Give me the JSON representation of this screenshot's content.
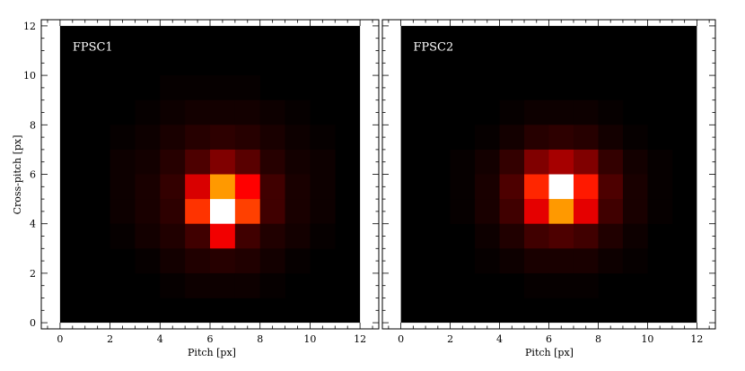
{
  "chart_data": [
    {
      "type": "heatmap",
      "title": "FPSC1",
      "xlabel": "Pitch [px]",
      "ylabel": "Cross-pitch [px]",
      "xlim": [
        -0.75,
        12.75
      ],
      "ylim": [
        -0.25,
        12.25
      ],
      "x_ticks": [
        0,
        2,
        4,
        6,
        8,
        10,
        12
      ],
      "y_ticks": [
        0,
        2,
        4,
        6,
        8,
        10,
        12
      ],
      "pixel_size": 1,
      "grid_origin": [
        0,
        0
      ],
      "grid_shape": [
        12,
        12
      ],
      "colormap": "hot",
      "values_relative_intensity": [
        [
          0.0,
          0.0,
          0.0,
          0.0,
          0.0,
          0.0,
          0.0,
          0.0,
          0.0,
          0.0,
          0.0,
          0.0
        ],
        [
          0.0,
          0.0,
          0.0,
          0.0,
          0.0,
          0.0,
          0.0,
          0.0,
          0.0,
          0.0,
          0.0,
          0.0
        ],
        [
          0.0,
          0.0,
          0.0,
          0.0,
          0.01,
          0.01,
          0.01,
          0.01,
          0.0,
          0.0,
          0.0,
          0.0
        ],
        [
          0.0,
          0.0,
          0.0,
          0.01,
          0.02,
          0.03,
          0.03,
          0.03,
          0.02,
          0.01,
          0.0,
          0.0
        ],
        [
          0.0,
          0.0,
          0.01,
          0.02,
          0.04,
          0.06,
          0.07,
          0.06,
          0.04,
          0.02,
          0.01,
          0.0
        ],
        [
          0.0,
          0.0,
          0.02,
          0.03,
          0.06,
          0.12,
          0.2,
          0.14,
          0.06,
          0.03,
          0.02,
          0.0
        ],
        [
          0.0,
          0.0,
          0.02,
          0.04,
          0.08,
          0.34,
          0.64,
          0.4,
          0.1,
          0.04,
          0.02,
          0.0
        ],
        [
          0.0,
          0.0,
          0.02,
          0.04,
          0.07,
          0.48,
          1.0,
          0.5,
          0.1,
          0.04,
          0.02,
          0.0
        ],
        [
          0.0,
          0.0,
          0.01,
          0.03,
          0.05,
          0.1,
          0.38,
          0.1,
          0.05,
          0.03,
          0.01,
          0.0
        ],
        [
          0.0,
          0.0,
          0.0,
          0.01,
          0.03,
          0.05,
          0.06,
          0.05,
          0.03,
          0.01,
          0.0,
          0.0
        ],
        [
          0.0,
          0.0,
          0.0,
          0.0,
          0.01,
          0.02,
          0.02,
          0.02,
          0.01,
          0.0,
          0.0,
          0.0
        ],
        [
          0.0,
          0.0,
          0.0,
          0.0,
          0.0,
          0.0,
          0.0,
          0.0,
          0.0,
          0.0,
          0.0,
          0.0
        ]
      ]
    },
    {
      "type": "heatmap",
      "title": "FPSC2",
      "xlabel": "Pitch [px]",
      "ylabel": "",
      "xlim": [
        -0.75,
        12.75
      ],
      "ylim": [
        -0.25,
        12.25
      ],
      "x_ticks": [
        0,
        2,
        4,
        6,
        8,
        10,
        12
      ],
      "y_ticks": [
        0,
        2,
        4,
        6,
        8,
        10,
        12
      ],
      "pixel_size": 1,
      "grid_origin": [
        0,
        0
      ],
      "grid_shape": [
        12,
        12
      ],
      "colormap": "hot",
      "values_relative_intensity": [
        [
          0.0,
          0.0,
          0.0,
          0.0,
          0.0,
          0.0,
          0.0,
          0.0,
          0.0,
          0.0,
          0.0,
          0.0
        ],
        [
          0.0,
          0.0,
          0.0,
          0.0,
          0.0,
          0.0,
          0.0,
          0.0,
          0.0,
          0.0,
          0.0,
          0.0
        ],
        [
          0.0,
          0.0,
          0.0,
          0.0,
          0.0,
          0.0,
          0.0,
          0.0,
          0.0,
          0.0,
          0.0,
          0.0
        ],
        [
          0.0,
          0.0,
          0.0,
          0.0,
          0.01,
          0.02,
          0.02,
          0.02,
          0.01,
          0.0,
          0.0,
          0.0
        ],
        [
          0.0,
          0.0,
          0.0,
          0.01,
          0.03,
          0.06,
          0.07,
          0.06,
          0.03,
          0.01,
          0.0,
          0.0
        ],
        [
          0.0,
          0.0,
          0.01,
          0.03,
          0.08,
          0.2,
          0.26,
          0.2,
          0.08,
          0.03,
          0.01,
          0.0
        ],
        [
          0.0,
          0.0,
          0.01,
          0.04,
          0.12,
          0.46,
          1.0,
          0.44,
          0.12,
          0.04,
          0.01,
          0.0
        ],
        [
          0.0,
          0.0,
          0.01,
          0.04,
          0.1,
          0.36,
          0.64,
          0.36,
          0.1,
          0.04,
          0.01,
          0.0
        ],
        [
          0.0,
          0.0,
          0.0,
          0.02,
          0.05,
          0.1,
          0.12,
          0.1,
          0.05,
          0.02,
          0.0,
          0.0
        ],
        [
          0.0,
          0.0,
          0.0,
          0.01,
          0.02,
          0.04,
          0.04,
          0.04,
          0.02,
          0.01,
          0.0,
          0.0
        ],
        [
          0.0,
          0.0,
          0.0,
          0.0,
          0.0,
          0.01,
          0.01,
          0.01,
          0.0,
          0.0,
          0.0,
          0.0
        ],
        [
          0.0,
          0.0,
          0.0,
          0.0,
          0.0,
          0.0,
          0.0,
          0.0,
          0.0,
          0.0,
          0.0,
          0.0
        ]
      ]
    }
  ]
}
